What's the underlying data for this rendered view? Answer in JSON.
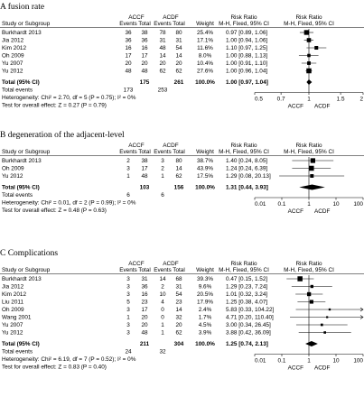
{
  "chart_data": [
    {
      "type": "forest",
      "title": "A fusion rate",
      "group_labels": [
        "ACCF",
        "ACDF"
      ],
      "headers": {
        "study": "Study or Subgroup",
        "events": "Events",
        "total": "Total",
        "weight": "Weight",
        "effect": "Risk Ratio",
        "effect_method": "M-H, Fixed, 95% CI",
        "plot": "Risk Ratio",
        "plot_method": "M-H, Fixed, 95% CI"
      },
      "studies": [
        {
          "name": "Burkhardt 2013",
          "e1": "36",
          "t1": "38",
          "e2": "78",
          "t2": "80",
          "weight": "25.4%",
          "ci_text": "0.97 [0.89, 1.06]",
          "rr": 0.97,
          "lo": 0.89,
          "hi": 1.06,
          "w": 25.4
        },
        {
          "name": "Jia 2012",
          "e1": "36",
          "t1": "36",
          "e2": "31",
          "t2": "31",
          "weight": "17.1%",
          "ci_text": "1.00 [0.94, 1.06]",
          "rr": 1.0,
          "lo": 0.94,
          "hi": 1.06,
          "w": 17.1
        },
        {
          "name": "Kim 2012",
          "e1": "16",
          "t1": "16",
          "e2": "48",
          "t2": "54",
          "weight": "11.6%",
          "ci_text": "1.10 [0.97, 1.25]",
          "rr": 1.1,
          "lo": 0.97,
          "hi": 1.25,
          "w": 11.6
        },
        {
          "name": "Oh 2009",
          "e1": "17",
          "t1": "17",
          "e2": "14",
          "t2": "14",
          "weight": "8.0%",
          "ci_text": "1.00 [0.88, 1.13]",
          "rr": 1.0,
          "lo": 0.88,
          "hi": 1.13,
          "w": 8.0
        },
        {
          "name": "Yu 2007",
          "e1": "20",
          "t1": "20",
          "e2": "20",
          "t2": "20",
          "weight": "10.4%",
          "ci_text": "1.00 [0.91, 1.10]",
          "rr": 1.0,
          "lo": 0.91,
          "hi": 1.1,
          "w": 10.4
        },
        {
          "name": "Yu 2012",
          "e1": "48",
          "t1": "48",
          "e2": "62",
          "t2": "62",
          "weight": "27.6%",
          "ci_text": "1.00 [0.96, 1.04]",
          "rr": 1.0,
          "lo": 0.96,
          "hi": 1.04,
          "w": 27.6
        }
      ],
      "total": {
        "label": "Total (95% CI)",
        "t1": "175",
        "t2": "261",
        "weight": "100.0%",
        "ci_text": "1.00 [0.97, 1.04]",
        "rr": 1.0,
        "lo": 0.97,
        "hi": 1.04
      },
      "total_events": {
        "label": "Total events",
        "e1": "173",
        "e2": "253"
      },
      "heterogeneity": "Heterogeneity: Chi² = 2.70, df = 5 (P = 0.75); I² = 0%",
      "overall_effect": "Test for overall effect: Z = 0.27 (P = 0.79)",
      "axis": {
        "scale": "log",
        "min": 0.5,
        "max": 2,
        "ticks": [
          0.5,
          0.7,
          1,
          1.5,
          2
        ],
        "tick_labels": [
          "0.5",
          "0.7",
          "1",
          "1.5",
          "2"
        ],
        "favours_left": "ACCF",
        "favours_right": "ACDF"
      }
    },
    {
      "type": "forest",
      "title": "B degeneration of the adjacent-level",
      "group_labels": [
        "ACCF",
        "ACDF"
      ],
      "headers": {
        "study": "Study or Subgroup",
        "events": "Events",
        "total": "Total",
        "weight": "Weight",
        "effect": "Risk Ratio",
        "effect_method": "M-H, Fixed, 95% CI",
        "plot": "Risk Ratio",
        "plot_method": "M-H, Fixed, 95% CI"
      },
      "studies": [
        {
          "name": "Burkhardt 2013",
          "e1": "2",
          "t1": "38",
          "e2": "3",
          "t2": "80",
          "weight": "38.7%",
          "ci_text": "1.40 [0.24, 8.05]",
          "rr": 1.4,
          "lo": 0.24,
          "hi": 8.05,
          "w": 38.7
        },
        {
          "name": "Oh 2009",
          "e1": "3",
          "t1": "17",
          "e2": "2",
          "t2": "14",
          "weight": "43.9%",
          "ci_text": "1.24 [0.24, 6.39]",
          "rr": 1.24,
          "lo": 0.24,
          "hi": 6.39,
          "w": 43.9
        },
        {
          "name": "Yu 2012",
          "e1": "1",
          "t1": "48",
          "e2": "1",
          "t2": "62",
          "weight": "17.5%",
          "ci_text": "1.29 [0.08, 20.13]",
          "rr": 1.29,
          "lo": 0.08,
          "hi": 20.13,
          "w": 17.5
        }
      ],
      "total": {
        "label": "Total (95% CI)",
        "t1": "103",
        "t2": "156",
        "weight": "100.0%",
        "ci_text": "1.31 [0.44, 3.93]",
        "rr": 1.31,
        "lo": 0.44,
        "hi": 3.93
      },
      "total_events": {
        "label": "Total events",
        "e1": "6",
        "e2": "6"
      },
      "heterogeneity": "Heterogeneity: Chi² = 0.01, df = 2 (P = 0.99); I² = 0%",
      "overall_effect": "Test for overall effect: Z = 0.48 (P = 0.63)",
      "axis": {
        "scale": "log",
        "min": 0.01,
        "max": 100,
        "ticks": [
          0.01,
          0.1,
          1,
          10,
          100
        ],
        "tick_labels": [
          "0.01",
          "0.1",
          "1",
          "10",
          "100"
        ],
        "favours_left": "ACCF",
        "favours_right": "ACDF"
      }
    },
    {
      "type": "forest",
      "title": "C Complications",
      "group_labels": [
        "ACCF",
        "ACDF"
      ],
      "headers": {
        "study": "Study or Subgroup",
        "events": "Events",
        "total": "Total",
        "weight": "Weight",
        "effect": "Risk Ratio",
        "effect_method": "M-H, Fixed, 95% CI",
        "plot": "Risk Ratio",
        "plot_method": "M-H, Fixed, 95% CI"
      },
      "studies": [
        {
          "name": "Burkhardt 2013",
          "e1": "3",
          "t1": "31",
          "e2": "14",
          "t2": "68",
          "weight": "39.3%",
          "ci_text": "0.47 [0.15, 1.52]",
          "rr": 0.47,
          "lo": 0.15,
          "hi": 1.52,
          "w": 39.3
        },
        {
          "name": "Jia 2012",
          "e1": "3",
          "t1": "36",
          "e2": "2",
          "t2": "31",
          "weight": "9.6%",
          "ci_text": "1.29 [0.23, 7.24]",
          "rr": 1.29,
          "lo": 0.23,
          "hi": 7.24,
          "w": 9.6
        },
        {
          "name": "Kim 2012",
          "e1": "3",
          "t1": "16",
          "e2": "10",
          "t2": "54",
          "weight": "20.5%",
          "ci_text": "1.01 [0.32, 3.24]",
          "rr": 1.01,
          "lo": 0.32,
          "hi": 3.24,
          "w": 20.5
        },
        {
          "name": "Liu 2011",
          "e1": "5",
          "t1": "23",
          "e2": "4",
          "t2": "23",
          "weight": "17.9%",
          "ci_text": "1.25 [0.38, 4.07]",
          "rr": 1.25,
          "lo": 0.38,
          "hi": 4.07,
          "w": 17.9
        },
        {
          "name": "Oh 2009",
          "e1": "3",
          "t1": "17",
          "e2": "0",
          "t2": "14",
          "weight": "2.4%",
          "ci_text": "5.83 [0.33, 104.22]",
          "rr": 5.83,
          "lo": 0.33,
          "hi": 104.22,
          "w": 2.4
        },
        {
          "name": "Wang 2001",
          "e1": "1",
          "t1": "20",
          "e2": "0",
          "t2": "32",
          "weight": "1.7%",
          "ci_text": "4.71 [0.20, 110.40]",
          "rr": 4.71,
          "lo": 0.2,
          "hi": 110.4,
          "w": 1.7
        },
        {
          "name": "Yu 2007",
          "e1": "3",
          "t1": "20",
          "e2": "1",
          "t2": "20",
          "weight": "4.5%",
          "ci_text": "3.00 [0.34, 26.45]",
          "rr": 3.0,
          "lo": 0.34,
          "hi": 26.45,
          "w": 4.5
        },
        {
          "name": "Yu 2012",
          "e1": "3",
          "t1": "48",
          "e2": "1",
          "t2": "62",
          "weight": "3.9%",
          "ci_text": "3.88 [0.42, 36.09]",
          "rr": 3.88,
          "lo": 0.42,
          "hi": 36.09,
          "w": 3.9
        }
      ],
      "total": {
        "label": "Total (95% CI)",
        "t1": "211",
        "t2": "304",
        "weight": "100.0%",
        "ci_text": "1.25 [0.74, 2.13]",
        "rr": 1.25,
        "lo": 0.74,
        "hi": 2.13
      },
      "total_events": {
        "label": "Total events",
        "e1": "24",
        "e2": "32"
      },
      "heterogeneity": "Heterogeneity: Chi² = 6.19, df = 7 (P = 0.52); I² = 0%",
      "overall_effect": "Test for overall effect: Z = 0.83 (P = 0.40)",
      "axis": {
        "scale": "log",
        "min": 0.01,
        "max": 100,
        "ticks": [
          0.01,
          0.1,
          1,
          10,
          100
        ],
        "tick_labels": [
          "0.01",
          "0.1",
          "1",
          "10",
          "100"
        ],
        "favours_left": "ACCF",
        "favours_right": "ACDF"
      }
    }
  ]
}
